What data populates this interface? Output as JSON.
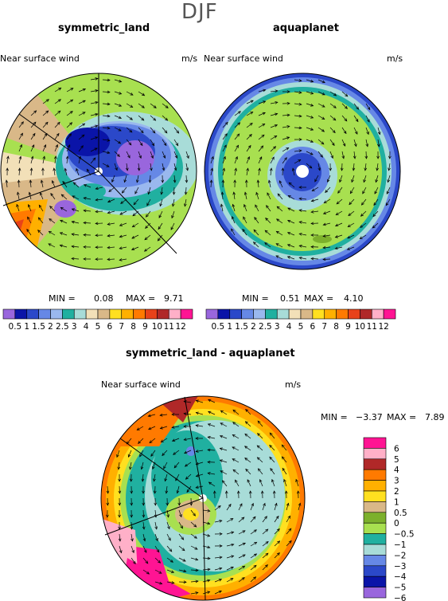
{
  "figure": {
    "season": "DJF"
  },
  "colors": {
    "abs_levels": [
      "#9966dd",
      "#0a14a8",
      "#2b48c9",
      "#6688e6",
      "#9ab8ee",
      "#20b0a0",
      "#a8dcd8",
      "#f2e0b8",
      "#d9b888",
      "#ffe020",
      "#ffb000",
      "#ff7a00",
      "#e8421a",
      "#b02828",
      "#ffb0c8",
      "#ff1493"
    ],
    "diff_levels": [
      "#9966dd",
      "#0a14a8",
      "#2b48c9",
      "#6688e6",
      "#a8dcd8",
      "#20b0a0",
      "#a8e050",
      "#7cb02c",
      "#d9b888",
      "#ffe020",
      "#ffb000",
      "#ff7a00",
      "#b02828",
      "#ffb0c8",
      "#ff1493"
    ]
  },
  "labels": {
    "unit": "m/s",
    "variable": "Near surface wind",
    "min_label": "MIN =",
    "max_label": "MAX ="
  },
  "chart_data": [
    {
      "type": "heatmap",
      "title": "symmetric_land",
      "subtitle": "Near surface wind",
      "units": "m/s",
      "projection": "polar",
      "min": "0.08",
      "max": "9.71",
      "colorbar_ticks": [
        "0.5",
        "1",
        "1.5",
        "2",
        "2.5",
        "3",
        "4",
        "5",
        "6",
        "7",
        "8",
        "9",
        "10",
        "11",
        "12"
      ]
    },
    {
      "type": "heatmap",
      "title": "aquaplanet",
      "subtitle": "Near surface wind",
      "units": "m/s",
      "projection": "polar",
      "min": "0.51",
      "max": "4.10",
      "colorbar_ticks": [
        "0.5",
        "1",
        "1.5",
        "2",
        "2.5",
        "3",
        "4",
        "5",
        "6",
        "7",
        "8",
        "9",
        "10",
        "11",
        "12"
      ]
    },
    {
      "type": "heatmap",
      "title": "symmetric_land - aquaplanet",
      "subtitle": "Near surface wind",
      "units": "m/s",
      "projection": "polar",
      "min": "−3.37",
      "max": "7.89",
      "colorbar_ticks": [
        "6",
        "5",
        "4",
        "3",
        "2",
        "1",
        "0.5",
        "0",
        "−0.5",
        "−1",
        "−2",
        "−3",
        "−4",
        "−5",
        "−6"
      ]
    }
  ]
}
